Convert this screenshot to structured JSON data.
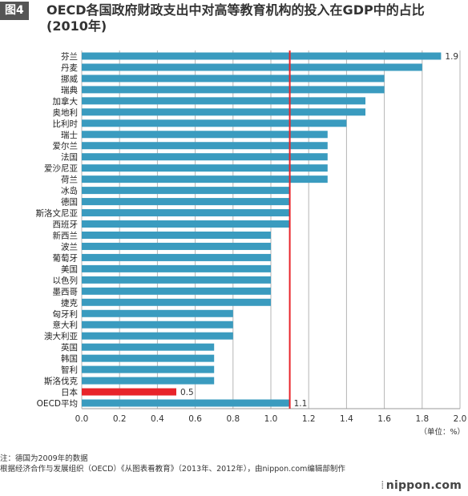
{
  "header": {
    "tag": "图4",
    "title": "OECD各国政府财政支出中对高等教育机构的投入在GDP中的占比(2010年)"
  },
  "footer": {
    "note": "注：德国为2009年的数据",
    "source": "根据经济合作与发展组织（OECD）《从图表看教育》（2013年、2012年），由nippon.com编辑部制作",
    "brand": "nippon.com"
  },
  "chart_data": {
    "type": "bar",
    "orientation": "horizontal",
    "categories": [
      "芬兰",
      "丹麦",
      "挪威",
      "瑞典",
      "加拿大",
      "奥地利",
      "比利时",
      "瑞士",
      "爱尔兰",
      "法国",
      "爱沙尼亚",
      "荷兰",
      "冰岛",
      "德国",
      "斯洛文尼亚",
      "西班牙",
      "新西兰",
      "波兰",
      "葡萄牙",
      "美国",
      "以色列",
      "墨西哥",
      "捷克",
      "匈牙利",
      "意大利",
      "澳大利亚",
      "英国",
      "韩国",
      "智利",
      "斯洛伐克",
      "日本",
      "OECD平均"
    ],
    "values": [
      1.9,
      1.8,
      1.6,
      1.6,
      1.5,
      1.5,
      1.4,
      1.3,
      1.3,
      1.3,
      1.3,
      1.3,
      1.1,
      1.1,
      1.1,
      1.1,
      1.0,
      1.0,
      1.0,
      1.0,
      1.0,
      1.0,
      1.0,
      0.8,
      0.8,
      0.8,
      0.7,
      0.7,
      0.7,
      0.7,
      0.5,
      1.1
    ],
    "data_labels": {
      "芬兰": "1.9",
      "日本": "0.5",
      "OECD平均": "1.1"
    },
    "highlight": {
      "日本": "#e8242a"
    },
    "bar_color": "#3a9bbf",
    "reference_line": {
      "value": 1.1,
      "color": "#e8242a"
    },
    "xlim": [
      0,
      2.0
    ],
    "x_ticks": [
      "0.0",
      "0.2",
      "0.4",
      "0.6",
      "0.8",
      "1.0",
      "1.2",
      "1.4",
      "1.6",
      "1.8",
      "2.0"
    ],
    "unit_label": "（单位：%）",
    "grid": true
  }
}
